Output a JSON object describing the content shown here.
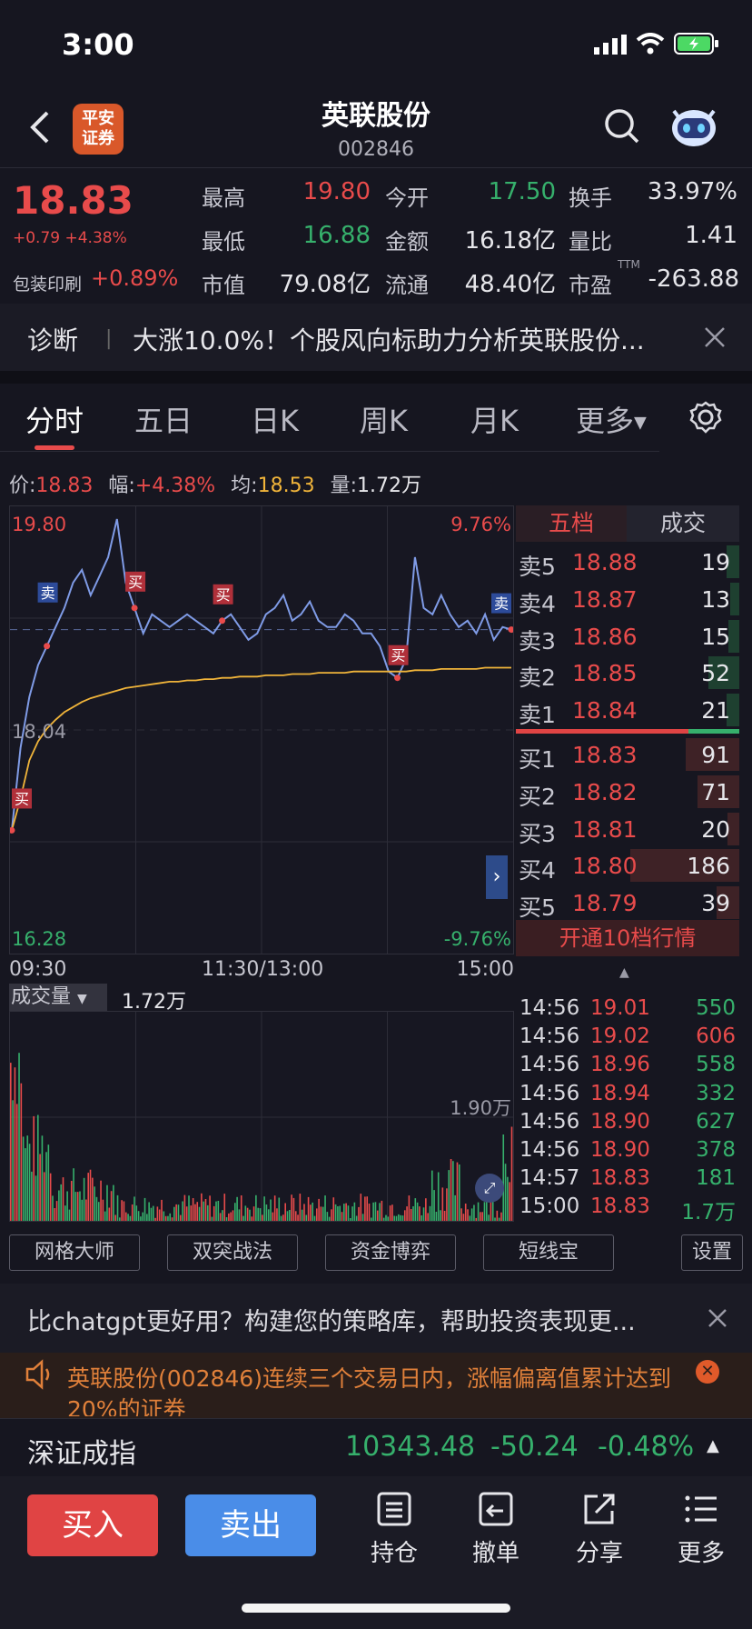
{
  "status": {
    "time": "3:00"
  },
  "header": {
    "name": "英联股份",
    "code": "002846",
    "logo_line1": "平安",
    "logo_line2": "证券"
  },
  "quote": {
    "price": "18.83",
    "change": "+0.79 +4.38%",
    "sector_name": "包装印刷",
    "sector_pct": "+0.89%",
    "high_label": "最高",
    "high": "19.80",
    "open_label": "今开",
    "open": "17.50",
    "turnover_label": "换手",
    "turnover": "33.97%",
    "low_label": "最低",
    "low": "16.88",
    "amount_label": "金额",
    "amount": "16.18亿",
    "volratio_label": "量比",
    "volratio": "1.41",
    "mktcap_label": "市值",
    "mktcap": "79.08亿",
    "float_label": "流通",
    "float": "48.40亿",
    "pe_label": "市盈",
    "pe_sup": "TTM",
    "pe": "-263.88"
  },
  "diagnosis": {
    "label": "诊断",
    "sep": "|",
    "text": "大涨10.0%！个股风向标助力分析英联股份..."
  },
  "tabs": [
    "分时",
    "五日",
    "日K",
    "周K",
    "月K",
    "更多"
  ],
  "chart_info": {
    "price_label": "价:",
    "price": "18.83",
    "amp_label": "幅:",
    "amp": "+4.38%",
    "avg_label": "均:",
    "avg": "18.53",
    "vol_label": "量:",
    "vol": "1.72万"
  },
  "chart": {
    "y_top": "19.80",
    "y_mid": "18.04",
    "y_bot": "16.28",
    "pct_top": "9.76%",
    "pct_bot": "-9.76%",
    "time_start": "09:30",
    "time_mid": "11:30/13:00",
    "time_end": "15:00",
    "marker_buy": "买",
    "marker_sell": "卖",
    "expand": "›"
  },
  "chart_data": {
    "type": "line",
    "ylim": [
      16.28,
      19.8
    ],
    "prev_close": 18.04,
    "series": [
      {
        "name": "价",
        "values": [
          17.25,
          17.9,
          18.3,
          18.55,
          18.7,
          18.85,
          19.0,
          19.2,
          19.3,
          19.1,
          19.25,
          19.4,
          19.7,
          19.2,
          19.0,
          18.8,
          18.95,
          18.9,
          18.85,
          18.9,
          18.95,
          18.9,
          18.85,
          18.8,
          18.9,
          18.95,
          18.85,
          18.75,
          18.8,
          18.95,
          19.0,
          19.1,
          18.9,
          18.95,
          19.05,
          18.9,
          18.85,
          18.85,
          18.95,
          18.9,
          18.8,
          18.8,
          18.7,
          18.5,
          18.45,
          18.6,
          19.4,
          19.0,
          18.95,
          19.1,
          18.95,
          18.85,
          18.9,
          18.8,
          18.95,
          18.75,
          18.85,
          18.83
        ]
      },
      {
        "name": "均",
        "values": [
          17.25,
          17.5,
          17.8,
          17.95,
          18.05,
          18.12,
          18.18,
          18.22,
          18.26,
          18.29,
          18.31,
          18.33,
          18.35,
          18.37,
          18.38,
          18.39,
          18.4,
          18.41,
          18.42,
          18.42,
          18.43,
          18.43,
          18.44,
          18.44,
          18.45,
          18.45,
          18.46,
          18.46,
          18.46,
          18.47,
          18.47,
          18.47,
          18.48,
          18.48,
          18.48,
          18.49,
          18.49,
          18.49,
          18.49,
          18.5,
          18.5,
          18.5,
          18.5,
          18.5,
          18.5,
          18.5,
          18.51,
          18.51,
          18.51,
          18.52,
          18.52,
          18.52,
          18.52,
          18.52,
          18.53,
          18.53,
          18.53,
          18.53
        ]
      }
    ]
  },
  "volume": {
    "label": "成交量",
    "value": "1.72万",
    "scale": "1.90万"
  },
  "orderbook": {
    "tab_five": "五档",
    "tab_trades": "成交",
    "sell": [
      {
        "label": "卖5",
        "price": "18.88",
        "vol": "19",
        "w": 0.12
      },
      {
        "label": "卖4",
        "price": "18.87",
        "vol": "13",
        "w": 0.08
      },
      {
        "label": "卖3",
        "price": "18.86",
        "vol": "15",
        "w": 0.1
      },
      {
        "label": "卖2",
        "price": "18.85",
        "vol": "52",
        "w": 0.28
      },
      {
        "label": "卖1",
        "price": "18.84",
        "vol": "21",
        "w": 0.12
      }
    ],
    "buy": [
      {
        "label": "买1",
        "price": "18.83",
        "vol": "91",
        "w": 0.49
      },
      {
        "label": "买2",
        "price": "18.82",
        "vol": "71",
        "w": 0.38
      },
      {
        "label": "买3",
        "price": "18.81",
        "vol": "20",
        "w": 0.11
      },
      {
        "label": "买4",
        "price": "18.80",
        "vol": "186",
        "w": 1.0
      },
      {
        "label": "买5",
        "price": "18.79",
        "vol": "39",
        "w": 0.21
      }
    ],
    "open10": "开通10档行情"
  },
  "ticks": [
    {
      "time": "14:56",
      "price": "19.01",
      "vol": "550",
      "dir": "g"
    },
    {
      "time": "14:56",
      "price": "19.02",
      "vol": "606",
      "dir": "r"
    },
    {
      "time": "14:56",
      "price": "18.96",
      "vol": "558",
      "dir": "g"
    },
    {
      "time": "14:56",
      "price": "18.94",
      "vol": "332",
      "dir": "g"
    },
    {
      "time": "14:56",
      "price": "18.90",
      "vol": "627",
      "dir": "g"
    },
    {
      "time": "14:56",
      "price": "18.90",
      "vol": "378",
      "dir": "g"
    },
    {
      "time": "14:57",
      "price": "18.83",
      "vol": "181",
      "dir": "g"
    },
    {
      "time": "15:00",
      "price": "18.83",
      "vol": "1.7万",
      "dir": "g"
    }
  ],
  "tools": [
    "网格大师",
    "双突战法",
    "资金博弈",
    "短线宝",
    "设置"
  ],
  "ad": {
    "text": "比chatgpt更好用？构建您的策略库，帮助投资表现更..."
  },
  "alert": {
    "text": "英联股份(002846)连续三个交易日内，涨幅偏离值累计达到20%的证券"
  },
  "index": {
    "name": "深证成指",
    "value": "10343.48",
    "change": "-50.24",
    "pct": "-0.48%"
  },
  "bottom": {
    "buy": "买入",
    "sell": "卖出",
    "hold": "持仓",
    "cancel": "撤单",
    "share": "分享",
    "more": "更多"
  },
  "colors": {
    "up": "#e84b4b",
    "down": "#36b06c",
    "price_line": "#7f9be6",
    "avg_line": "#f0b43a"
  }
}
